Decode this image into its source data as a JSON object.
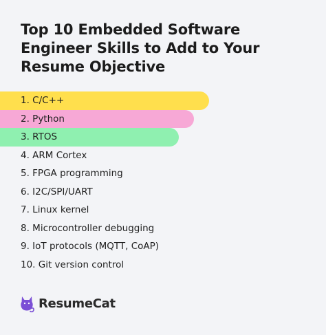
{
  "title": "Top 10 Embedded Software Engineer Skills to Add to Your Resume Objective",
  "skills": [
    {
      "label": "1. C/C++"
    },
    {
      "label": "2. Python"
    },
    {
      "label": "3. RTOS"
    },
    {
      "label": "4. ARM Cortex"
    },
    {
      "label": "5. FPGA programming"
    },
    {
      "label": "6. I2C/SPI/UART"
    },
    {
      "label": "7. Linux kernel"
    },
    {
      "label": "8. Microcontroller debugging"
    },
    {
      "label": "9. IoT protocols (MQTT, CoAP)"
    },
    {
      "label": "10. Git version control"
    }
  ],
  "highlight_colors": [
    "#ffdf4d",
    "#f7a8d6",
    "#8ff0b0"
  ],
  "brand": {
    "name": "ResumeCat",
    "icon": "cat-icon",
    "color": "#7b4fd6"
  }
}
